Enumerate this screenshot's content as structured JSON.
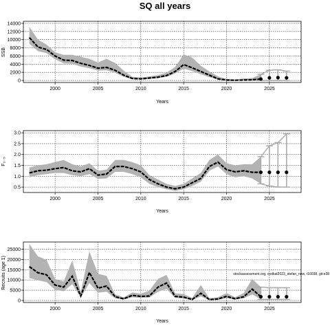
{
  "page": {
    "title": "SQ all years"
  },
  "colors": {
    "line": "#000000",
    "band": "#b3b3b3",
    "forecast": "#aaaaaa",
    "grid": "#000000"
  },
  "chart_data": [
    {
      "id": "ssb",
      "type": "line",
      "title": "",
      "xlabel": "Years",
      "ylabel": "SSB",
      "xlim": [
        1996.3,
        2028.7
      ],
      "ylim": [
        -500,
        14500
      ],
      "xticks": [
        2000,
        2005,
        2010,
        2015,
        2020,
        2025
      ],
      "yticks": [
        0,
        2000,
        4000,
        6000,
        8000,
        10000,
        12000,
        14000
      ],
      "grid": true,
      "x": [
        1997,
        1998,
        1999,
        2000,
        2001,
        2002,
        2003,
        2004,
        2005,
        2006,
        2007,
        2008,
        2009,
        2010,
        2011,
        2012,
        2013,
        2014,
        2015,
        2016,
        2017,
        2018,
        2019,
        2020,
        2021,
        2022,
        2023,
        2024
      ],
      "estimate": [
        10500,
        8200,
        7600,
        6000,
        5000,
        4900,
        4200,
        3700,
        3000,
        3200,
        2500,
        1300,
        500,
        400,
        600,
        800,
        1200,
        2200,
        3900,
        3100,
        2200,
        1300,
        400,
        100,
        50,
        100,
        150,
        350
      ],
      "lower": [
        9000,
        7200,
        6700,
        5200,
        4200,
        4100,
        3400,
        3000,
        2400,
        2500,
        1900,
        900,
        300,
        250,
        400,
        600,
        900,
        1700,
        2900,
        2300,
        1500,
        800,
        200,
        20,
        0,
        20,
        40,
        100
      ],
      "upper": [
        13200,
        10000,
        8800,
        6900,
        6300,
        6300,
        5800,
        5300,
        4400,
        5300,
        4300,
        2400,
        900,
        700,
        1000,
        1300,
        1900,
        3300,
        6400,
        5600,
        3600,
        2200,
        1000,
        400,
        200,
        500,
        600,
        1500
      ],
      "forecast": {
        "x": [
          2024,
          2025,
          2026,
          2027
        ],
        "values": [
          350,
          650,
          700,
          650
        ],
        "lower": [
          0,
          0,
          0,
          0
        ],
        "upper": [
          1500,
          2500,
          2600,
          2300
        ]
      }
    },
    {
      "id": "f",
      "type": "line",
      "title": "",
      "xlabel": "Years",
      "ylabel": "F₂₋₅",
      "xlim": [
        1996.3,
        2028.7
      ],
      "ylim": [
        0.25,
        3.1
      ],
      "xticks": [
        2000,
        2005,
        2010,
        2015,
        2020,
        2025
      ],
      "yticks": [
        "0.5",
        "1.0",
        "1.5",
        "2.0",
        "2.5",
        "3.0"
      ],
      "grid": true,
      "x": [
        1997,
        1998,
        1999,
        2000,
        2001,
        2002,
        2003,
        2004,
        2005,
        2006,
        2007,
        2008,
        2009,
        2010,
        2011,
        2012,
        2013,
        2014,
        2015,
        2016,
        2017,
        2018,
        2019,
        2020,
        2021,
        2022,
        2023,
        2024
      ],
      "estimate": [
        1.15,
        1.25,
        1.28,
        1.35,
        1.4,
        1.25,
        1.2,
        1.35,
        1.05,
        1.1,
        1.45,
        1.45,
        1.35,
        1.2,
        0.85,
        0.65,
        0.5,
        0.42,
        0.5,
        0.7,
        0.9,
        1.45,
        1.65,
        1.3,
        1.2,
        1.25,
        1.18,
        1.18
      ],
      "lower": [
        0.95,
        1.05,
        1.1,
        1.15,
        1.15,
        1.05,
        1.0,
        1.1,
        0.88,
        0.9,
        1.2,
        1.2,
        1.1,
        0.95,
        0.65,
        0.5,
        0.4,
        0.32,
        0.4,
        0.55,
        0.75,
        1.25,
        1.45,
        1.1,
        0.95,
        1.0,
        0.9,
        0.65
      ],
      "upper": [
        1.4,
        1.5,
        1.55,
        1.65,
        1.75,
        1.55,
        1.45,
        1.6,
        1.25,
        1.3,
        1.75,
        1.75,
        1.65,
        1.5,
        1.05,
        0.85,
        0.65,
        0.55,
        0.65,
        0.9,
        1.15,
        1.75,
        2.0,
        1.6,
        1.5,
        1.55,
        1.55,
        1.9
      ],
      "forecast": {
        "x": [
          2024,
          2025,
          2026,
          2027
        ],
        "values": [
          1.18,
          1.18,
          1.18,
          1.18
        ],
        "lower": [
          0.65,
          0.55,
          0.5,
          0.5
        ],
        "upper": [
          1.9,
          2.4,
          2.55,
          2.95
        ]
      }
    },
    {
      "id": "recruits",
      "type": "line",
      "title": "",
      "xlabel": "Years",
      "ylabel": "Recruits (age 1)",
      "note": "stockassessment.org, codkat2023_stefan_new, r16038, git:e38",
      "xlim": [
        1996.3,
        2028.7
      ],
      "ylim": [
        -1000,
        28500
      ],
      "xticks": [
        2000,
        2005,
        2010,
        2015,
        2020,
        2025
      ],
      "yticks": [
        0,
        5000,
        10000,
        15000,
        20000,
        25000
      ],
      "grid": true,
      "x": [
        1997,
        1998,
        1999,
        2000,
        2001,
        2002,
        2003,
        2004,
        2005,
        2006,
        2007,
        2008,
        2009,
        2010,
        2011,
        2012,
        2013,
        2014,
        2015,
        2016,
        2017,
        2018,
        2019,
        2020,
        2021,
        2022,
        2023,
        2024
      ],
      "estimate": [
        16500,
        13500,
        12500,
        7500,
        6500,
        11800,
        2200,
        13600,
        6000,
        7000,
        1800,
        800,
        2500,
        2000,
        2200,
        6500,
        8500,
        2000,
        1600,
        500,
        3500,
        400,
        700,
        2000,
        800,
        1800,
        5500,
        1800
      ],
      "lower": [
        11000,
        9800,
        9000,
        5200,
        4500,
        8000,
        1400,
        8500,
        3800,
        4300,
        1000,
        400,
        1500,
        1200,
        1400,
        4200,
        5600,
        1200,
        900,
        200,
        2000,
        150,
        300,
        1100,
        400,
        1000,
        3000,
        500
      ],
      "upper": [
        27500,
        21500,
        19800,
        10500,
        9200,
        19500,
        4200,
        24000,
        13000,
        12000,
        3000,
        1500,
        3900,
        3300,
        4800,
        10500,
        12500,
        3500,
        3100,
        1200,
        7500,
        1000,
        1600,
        3600,
        1600,
        3600,
        10500,
        6500
      ],
      "forecast": {
        "x": [
          2024,
          2025,
          2026,
          2027
        ],
        "values": [
          1800,
          1800,
          1800,
          1800
        ],
        "lower": [
          500,
          500,
          500,
          500
        ],
        "upper": [
          6500,
          6200,
          6200,
          6200
        ]
      }
    }
  ]
}
